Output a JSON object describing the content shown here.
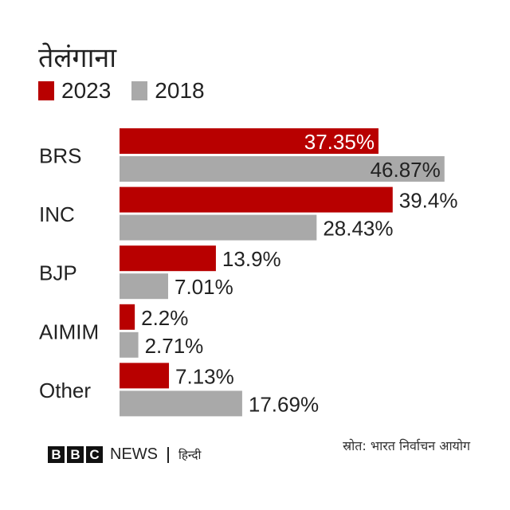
{
  "chart_data": {
    "type": "bar",
    "orientation": "horizontal",
    "title": "तेलंगाना",
    "categories": [
      "BRS",
      "INC",
      "BJP",
      "AIMIM",
      "Other"
    ],
    "series": [
      {
        "name": "2023",
        "color": "#b80000",
        "values": [
          37.35,
          39.4,
          13.9,
          2.2,
          7.13
        ],
        "labels": [
          "37.35%",
          "39.4%",
          "13.9%",
          "2.2%",
          "7.13%"
        ],
        "label_position": [
          "inside",
          "outside",
          "outside",
          "outside",
          "outside"
        ]
      },
      {
        "name": "2018",
        "color": "#a9a9a9",
        "values": [
          46.87,
          28.43,
          7.01,
          2.71,
          17.69
        ],
        "labels": [
          "46.87%",
          "28.43%",
          "7.01%",
          "2.71%",
          "17.69%"
        ],
        "label_position": [
          "inside",
          "outside",
          "outside",
          "outside",
          "outside"
        ]
      }
    ],
    "xlabel": "",
    "ylabel": "",
    "grid": false,
    "legend": "top-left"
  },
  "footer": {
    "logo_letters": [
      "B",
      "B",
      "C"
    ],
    "news": "NEWS",
    "language": "हिन्दी",
    "source": "स्रोत: भारत निर्वाचन आयोग"
  }
}
